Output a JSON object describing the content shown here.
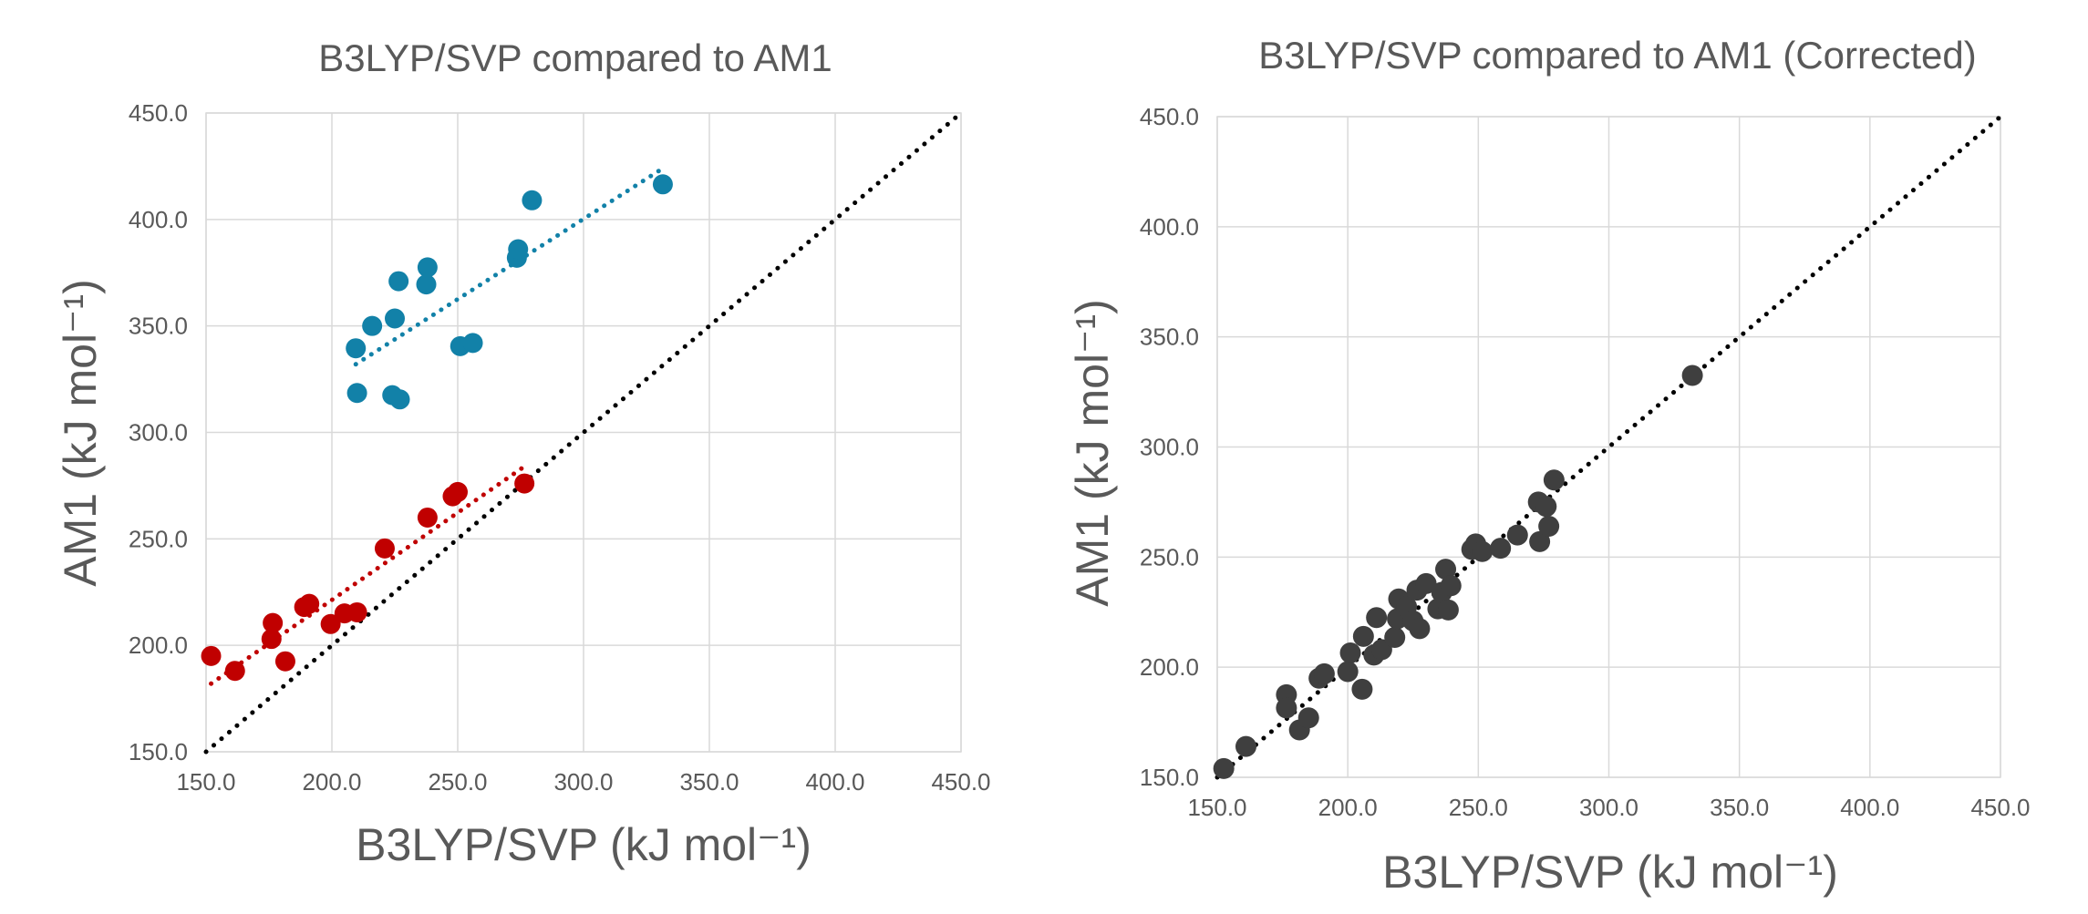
{
  "colors": {
    "series_blue": "#1281a8",
    "series_red": "#c00000",
    "series_gray": "#3f3f3f",
    "identity_line": "#000000"
  },
  "chart_data": [
    {
      "type": "scatter",
      "title": "B3LYP/SVP compared to AM1",
      "xlabel": "B3LYP/SVP (kJ mol⁻¹)",
      "ylabel": "AM1 (kJ mol⁻¹)",
      "xlim": [
        150,
        450
      ],
      "ylim": [
        150,
        450
      ],
      "xticks": [
        "150.0",
        "200.0",
        "250.0",
        "300.0",
        "350.0",
        "400.0",
        "450.0"
      ],
      "yticks": [
        "150.0",
        "200.0",
        "250.0",
        "300.0",
        "350.0",
        "400.0",
        "450.0"
      ],
      "grid": true,
      "series": [
        {
          "color": "#1281a8",
          "points": [
            [
              209.5,
              339.5
            ],
            [
              210.0,
              318.5
            ],
            [
              216.0,
              350.0
            ],
            [
              224.0,
              317.5
            ],
            [
              225.0,
              353.5
            ],
            [
              226.5,
              371.0
            ],
            [
              227.0,
              315.5
            ],
            [
              237.5,
              369.5
            ],
            [
              238.0,
              377.5
            ],
            [
              251.0,
              340.5
            ],
            [
              256.0,
              342.0
            ],
            [
              273.5,
              382.0
            ],
            [
              274.0,
              386.0
            ],
            [
              279.5,
              409.0
            ],
            [
              331.5,
              416.5
            ]
          ],
          "trendline": [
            [
              209.5,
              332.0
            ],
            [
              331.5,
              424.0
            ]
          ]
        },
        {
          "color": "#c00000",
          "points": [
            [
              152.0,
              195.0
            ],
            [
              161.5,
              188.0
            ],
            [
              176.5,
              210.5
            ],
            [
              176.0,
              203.0
            ],
            [
              181.5,
              192.5
            ],
            [
              189.0,
              218.0
            ],
            [
              191.0,
              219.5
            ],
            [
              199.5,
              210.0
            ],
            [
              205.0,
              215.0
            ],
            [
              210.0,
              215.5
            ],
            [
              221.0,
              245.5
            ],
            [
              238.0,
              260.0
            ],
            [
              248.0,
              270.0
            ],
            [
              250.0,
              272.0
            ],
            [
              276.5,
              276.0
            ]
          ],
          "trendline": [
            [
              152.0,
              182.0
            ],
            [
              276.5,
              284.0
            ]
          ]
        }
      ],
      "reference_line": [
        [
          150,
          150
        ],
        [
          450,
          450
        ]
      ]
    },
    {
      "type": "scatter",
      "title": "B3LYP/SVP compared to AM1 (Corrected)",
      "xlabel": "B3LYP/SVP (kJ mol⁻¹)",
      "ylabel": "AM1 (kJ mol⁻¹)",
      "xlim": [
        150,
        450
      ],
      "ylim": [
        150,
        450
      ],
      "xticks": [
        "150.0",
        "200.0",
        "250.0",
        "300.0",
        "350.0",
        "400.0",
        "450.0"
      ],
      "yticks": [
        "150.0",
        "200.0",
        "250.0",
        "300.0",
        "350.0",
        "400.0",
        "450.0"
      ],
      "grid": true,
      "series": [
        {
          "color": "#3f3f3f",
          "points": [
            [
              152.5,
              154.0
            ],
            [
              161.0,
              164.0
            ],
            [
              176.5,
              187.5
            ],
            [
              176.5,
              181.5
            ],
            [
              181.5,
              171.5
            ],
            [
              185.0,
              177.0
            ],
            [
              189.0,
              195.0
            ],
            [
              191.0,
              197.0
            ],
            [
              200.0,
              198.0
            ],
            [
              201.0,
              206.5
            ],
            [
              205.5,
              190.0
            ],
            [
              206.0,
              214.0
            ],
            [
              210.0,
              205.5
            ],
            [
              211.0,
              222.5
            ],
            [
              213.0,
              208.0
            ],
            [
              218.0,
              213.5
            ],
            [
              219.0,
              222.0
            ],
            [
              219.5,
              231.0
            ],
            [
              222.5,
              227.5
            ],
            [
              225.0,
              221.0
            ],
            [
              226.5,
              235.0
            ],
            [
              227.5,
              217.5
            ],
            [
              230.0,
              238.0
            ],
            [
              234.5,
              226.5
            ],
            [
              236.0,
              234.0
            ],
            [
              237.5,
              244.5
            ],
            [
              238.5,
              226.0
            ],
            [
              239.5,
              237.0
            ],
            [
              247.5,
              253.5
            ],
            [
              249.0,
              256.0
            ],
            [
              251.5,
              252.5
            ],
            [
              258.5,
              254.0
            ],
            [
              265.0,
              260.0
            ],
            [
              273.0,
              275.0
            ],
            [
              273.5,
              257.0
            ],
            [
              276.0,
              273.0
            ],
            [
              277.0,
              264.0
            ],
            [
              279.0,
              285.0
            ],
            [
              332.0,
              332.5
            ]
          ]
        }
      ],
      "reference_line": [
        [
          150,
          150
        ],
        [
          450,
          450
        ]
      ]
    }
  ]
}
